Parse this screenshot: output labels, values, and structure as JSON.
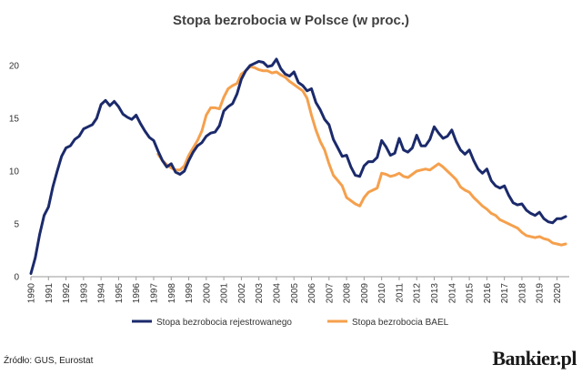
{
  "source": "Źródło: GUS, Eurostat",
  "brand": "Bankier.pl",
  "chart_data": {
    "type": "line",
    "title": "Stopa bezrobocia w Polsce (w proc.)",
    "xlabel": "",
    "ylabel": "",
    "xlim": [
      1990,
      2020.7
    ],
    "ylim": [
      0,
      20
    ],
    "yticks": [
      0,
      5,
      10,
      15,
      20
    ],
    "xticks": [
      "1990",
      "1991",
      "1992",
      "1993",
      "1994",
      "1995",
      "1996",
      "1997",
      "1998",
      "1999",
      "2000",
      "2001",
      "2002",
      "2003",
      "2004",
      "2005",
      "2006",
      "2007",
      "2008",
      "2009",
      "2010",
      "2011",
      "2012",
      "2013",
      "2014",
      "2015",
      "2016",
      "2017",
      "2018",
      "2019",
      "2020"
    ],
    "grid": false,
    "legend": "bottom",
    "series": [
      {
        "name": "Stopa bezrobocia rejestrowanego",
        "color": "#1b2a6b",
        "points": [
          [
            1990.0,
            0.3
          ],
          [
            1990.25,
            1.8
          ],
          [
            1990.5,
            4.0
          ],
          [
            1990.75,
            5.8
          ],
          [
            1991.0,
            6.6
          ],
          [
            1991.25,
            8.5
          ],
          [
            1991.5,
            10.0
          ],
          [
            1991.75,
            11.4
          ],
          [
            1992.0,
            12.2
          ],
          [
            1992.25,
            12.4
          ],
          [
            1992.5,
            13.0
          ],
          [
            1992.75,
            13.3
          ],
          [
            1993.0,
            14.0
          ],
          [
            1993.25,
            14.2
          ],
          [
            1993.5,
            14.4
          ],
          [
            1993.75,
            15.0
          ],
          [
            1994.0,
            16.3
          ],
          [
            1994.25,
            16.7
          ],
          [
            1994.5,
            16.2
          ],
          [
            1994.75,
            16.6
          ],
          [
            1995.0,
            16.1
          ],
          [
            1995.25,
            15.4
          ],
          [
            1995.5,
            15.1
          ],
          [
            1995.75,
            14.9
          ],
          [
            1996.0,
            15.3
          ],
          [
            1996.25,
            14.5
          ],
          [
            1996.5,
            13.8
          ],
          [
            1996.75,
            13.2
          ],
          [
            1997.0,
            12.9
          ],
          [
            1997.25,
            11.9
          ],
          [
            1997.5,
            11.0
          ],
          [
            1997.75,
            10.4
          ],
          [
            1998.0,
            10.7
          ],
          [
            1998.25,
            9.9
          ],
          [
            1998.5,
            9.7
          ],
          [
            1998.75,
            10.0
          ],
          [
            1999.0,
            11.0
          ],
          [
            1999.25,
            11.8
          ],
          [
            1999.5,
            12.4
          ],
          [
            1999.75,
            12.7
          ],
          [
            2000.0,
            13.3
          ],
          [
            2000.25,
            13.6
          ],
          [
            2000.5,
            13.7
          ],
          [
            2000.75,
            14.3
          ],
          [
            2001.0,
            15.7
          ],
          [
            2001.25,
            16.1
          ],
          [
            2001.5,
            16.4
          ],
          [
            2001.75,
            17.3
          ],
          [
            2002.0,
            18.7
          ],
          [
            2002.25,
            19.5
          ],
          [
            2002.5,
            20.0
          ],
          [
            2002.75,
            20.2
          ],
          [
            2003.0,
            20.4
          ],
          [
            2003.25,
            20.3
          ],
          [
            2003.5,
            19.9
          ],
          [
            2003.75,
            20.0
          ],
          [
            2004.0,
            20.6
          ],
          [
            2004.25,
            19.7
          ],
          [
            2004.5,
            19.2
          ],
          [
            2004.75,
            19.0
          ],
          [
            2005.0,
            19.4
          ],
          [
            2005.25,
            18.4
          ],
          [
            2005.5,
            18.1
          ],
          [
            2005.75,
            17.6
          ],
          [
            2006.0,
            17.8
          ],
          [
            2006.25,
            16.5
          ],
          [
            2006.5,
            15.8
          ],
          [
            2006.75,
            14.9
          ],
          [
            2007.0,
            14.4
          ],
          [
            2007.25,
            13.0
          ],
          [
            2007.5,
            12.2
          ],
          [
            2007.75,
            11.4
          ],
          [
            2008.0,
            11.5
          ],
          [
            2008.25,
            10.4
          ],
          [
            2008.5,
            9.6
          ],
          [
            2008.75,
            9.5
          ],
          [
            2009.0,
            10.5
          ],
          [
            2009.25,
            10.9
          ],
          [
            2009.5,
            10.9
          ],
          [
            2009.75,
            11.3
          ],
          [
            2010.0,
            12.9
          ],
          [
            2010.25,
            12.3
          ],
          [
            2010.5,
            11.5
          ],
          [
            2010.75,
            11.7
          ],
          [
            2011.0,
            13.1
          ],
          [
            2011.25,
            12.0
          ],
          [
            2011.5,
            11.8
          ],
          [
            2011.75,
            12.2
          ],
          [
            2012.0,
            13.4
          ],
          [
            2012.25,
            12.4
          ],
          [
            2012.5,
            12.4
          ],
          [
            2012.75,
            13.0
          ],
          [
            2013.0,
            14.2
          ],
          [
            2013.25,
            13.6
          ],
          [
            2013.5,
            13.1
          ],
          [
            2013.75,
            13.3
          ],
          [
            2014.0,
            13.9
          ],
          [
            2014.25,
            12.8
          ],
          [
            2014.5,
            12.0
          ],
          [
            2014.75,
            11.6
          ],
          [
            2015.0,
            12.0
          ],
          [
            2015.25,
            11.0
          ],
          [
            2015.5,
            10.2
          ],
          [
            2015.75,
            9.8
          ],
          [
            2016.0,
            10.2
          ],
          [
            2016.25,
            9.1
          ],
          [
            2016.5,
            8.6
          ],
          [
            2016.75,
            8.4
          ],
          [
            2017.0,
            8.6
          ],
          [
            2017.25,
            7.7
          ],
          [
            2017.5,
            7.0
          ],
          [
            2017.75,
            6.8
          ],
          [
            2018.0,
            6.9
          ],
          [
            2018.25,
            6.3
          ],
          [
            2018.5,
            6.0
          ],
          [
            2018.75,
            5.8
          ],
          [
            2019.0,
            6.1
          ],
          [
            2019.25,
            5.5
          ],
          [
            2019.5,
            5.2
          ],
          [
            2019.75,
            5.1
          ],
          [
            2020.0,
            5.5
          ],
          [
            2020.25,
            5.5
          ],
          [
            2020.5,
            5.7
          ]
        ]
      },
      {
        "name": "Stopa bezrobocia BAEL",
        "color": "#f5a04d",
        "points": [
          [
            1997.25,
            11.6
          ],
          [
            1997.5,
            11.0
          ],
          [
            1997.75,
            10.6
          ],
          [
            1998.0,
            10.3
          ],
          [
            1998.25,
            10.1
          ],
          [
            1998.5,
            10.1
          ],
          [
            1998.75,
            10.5
          ],
          [
            1999.0,
            11.5
          ],
          [
            1999.25,
            12.2
          ],
          [
            1999.5,
            12.9
          ],
          [
            1999.75,
            13.8
          ],
          [
            2000.0,
            15.3
          ],
          [
            2000.25,
            16.0
          ],
          [
            2000.5,
            16.0
          ],
          [
            2000.75,
            15.9
          ],
          [
            2001.0,
            17.0
          ],
          [
            2001.25,
            17.8
          ],
          [
            2001.5,
            18.1
          ],
          [
            2001.75,
            18.3
          ],
          [
            2002.0,
            19.2
          ],
          [
            2002.25,
            19.5
          ],
          [
            2002.5,
            19.9
          ],
          [
            2002.75,
            19.8
          ],
          [
            2003.0,
            19.6
          ],
          [
            2003.25,
            19.5
          ],
          [
            2003.5,
            19.5
          ],
          [
            2003.75,
            19.3
          ],
          [
            2004.0,
            19.4
          ],
          [
            2004.25,
            19.1
          ],
          [
            2004.5,
            18.9
          ],
          [
            2004.75,
            18.5
          ],
          [
            2005.0,
            18.2
          ],
          [
            2005.25,
            17.9
          ],
          [
            2005.5,
            17.6
          ],
          [
            2005.75,
            16.9
          ],
          [
            2006.0,
            15.3
          ],
          [
            2006.25,
            13.9
          ],
          [
            2006.5,
            12.8
          ],
          [
            2006.75,
            12.0
          ],
          [
            2007.0,
            10.7
          ],
          [
            2007.25,
            9.6
          ],
          [
            2007.5,
            9.1
          ],
          [
            2007.75,
            8.6
          ],
          [
            2008.0,
            7.5
          ],
          [
            2008.25,
            7.2
          ],
          [
            2008.5,
            6.9
          ],
          [
            2008.75,
            6.7
          ],
          [
            2009.0,
            7.5
          ],
          [
            2009.25,
            8.0
          ],
          [
            2009.5,
            8.2
          ],
          [
            2009.75,
            8.4
          ],
          [
            2010.0,
            9.8
          ],
          [
            2010.25,
            9.7
          ],
          [
            2010.5,
            9.5
          ],
          [
            2010.75,
            9.6
          ],
          [
            2011.0,
            9.8
          ],
          [
            2011.25,
            9.5
          ],
          [
            2011.5,
            9.4
          ],
          [
            2011.75,
            9.7
          ],
          [
            2012.0,
            10.0
          ],
          [
            2012.25,
            10.1
          ],
          [
            2012.5,
            10.2
          ],
          [
            2012.75,
            10.1
          ],
          [
            2013.0,
            10.4
          ],
          [
            2013.25,
            10.7
          ],
          [
            2013.5,
            10.4
          ],
          [
            2013.75,
            10.0
          ],
          [
            2014.0,
            9.6
          ],
          [
            2014.25,
            9.2
          ],
          [
            2014.5,
            8.5
          ],
          [
            2014.75,
            8.2
          ],
          [
            2015.0,
            8.0
          ],
          [
            2015.25,
            7.5
          ],
          [
            2015.5,
            7.1
          ],
          [
            2015.75,
            6.7
          ],
          [
            2016.0,
            6.4
          ],
          [
            2016.25,
            6.0
          ],
          [
            2016.5,
            5.8
          ],
          [
            2016.75,
            5.4
          ],
          [
            2017.0,
            5.2
          ],
          [
            2017.25,
            5.0
          ],
          [
            2017.5,
            4.8
          ],
          [
            2017.75,
            4.6
          ],
          [
            2018.0,
            4.2
          ],
          [
            2018.25,
            3.9
          ],
          [
            2018.5,
            3.8
          ],
          [
            2018.75,
            3.7
          ],
          [
            2019.0,
            3.8
          ],
          [
            2019.25,
            3.6
          ],
          [
            2019.5,
            3.5
          ],
          [
            2019.75,
            3.2
          ],
          [
            2020.0,
            3.1
          ],
          [
            2020.25,
            3.0
          ],
          [
            2020.5,
            3.1
          ]
        ]
      }
    ]
  }
}
